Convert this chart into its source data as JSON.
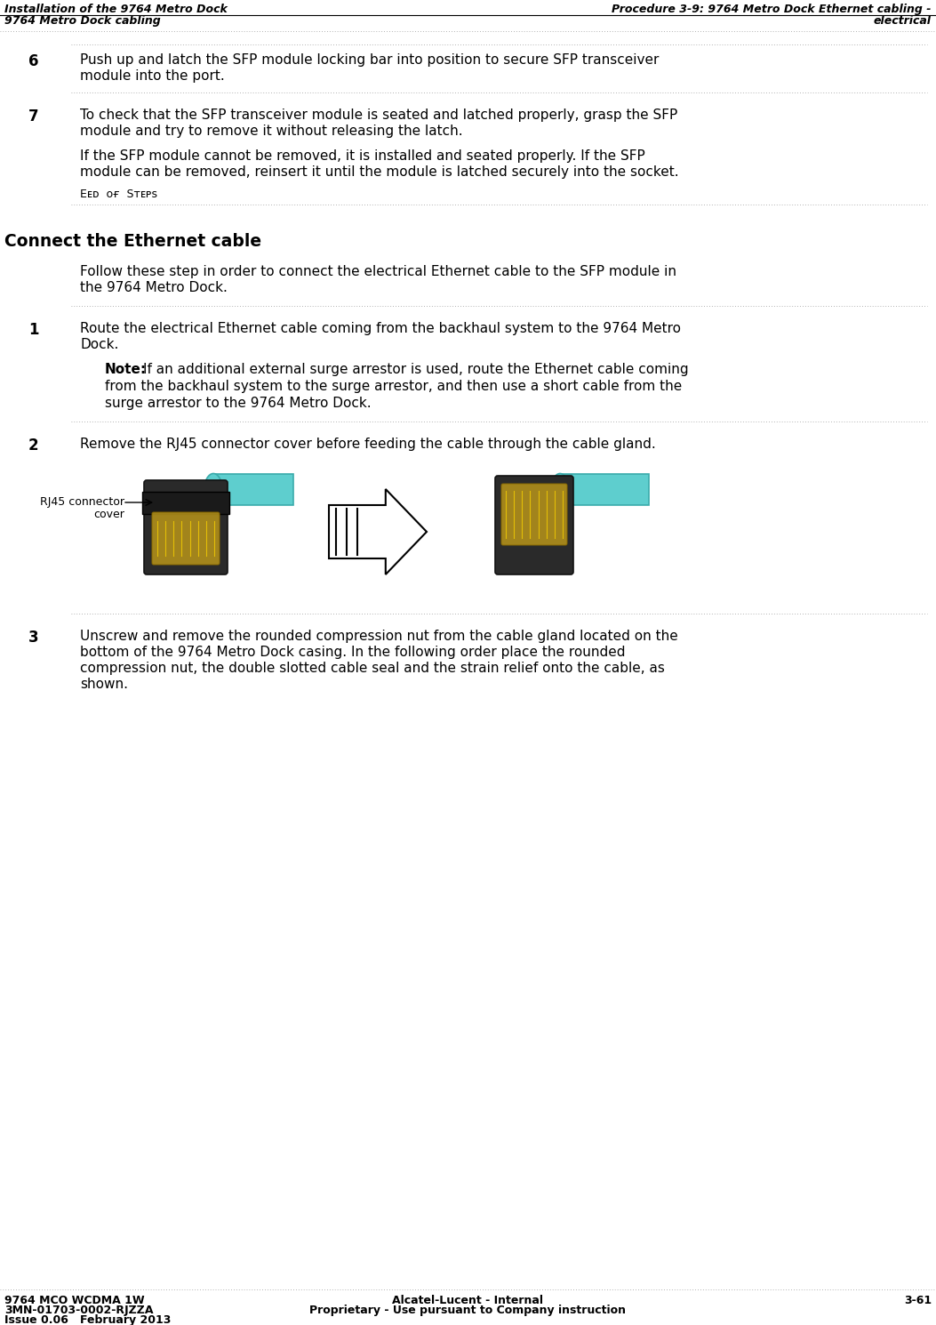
{
  "header_left_line1": "Installation of the 9764 Metro Dock",
  "header_left_line2": "9764 Metro Dock cabling",
  "header_right_line1": "Procedure 3-9: 9764 Metro Dock Ethernet cabling -",
  "header_right_line2": "electrical",
  "footer_left_line1": "9764 MCO WCDMA 1W",
  "footer_left_line2": "3MN-01703-0002-RJZZA",
  "footer_left_line3": "Issue 0.06   February 2013",
  "footer_center_line1": "Alcatel-Lucent - Internal",
  "footer_center_line2": "Proprietary - Use pursuant to Company instruction",
  "footer_right": "3-61",
  "step6_num": "6",
  "step6_line1": "Push up and latch the SFP module locking bar into position to secure SFP transceiver",
  "step6_line2": "module into the port.",
  "step7_num": "7",
  "step7_line1": "To check that the SFP transceiver module is seated and latched properly, grasp the SFP",
  "step7_line2": "module and try to remove it without releasing the latch.",
  "step7_p2_line1": "If the SFP module cannot be removed, it is installed and seated properly. If the SFP",
  "step7_p2_line2": "module can be removed, reinsert it until the module is latched securely into the socket.",
  "end_of_steps": "Eᴇᴅ  ᴏғ  Sᴛᴇᴘѕ",
  "section_title": "Connect the Ethernet cable",
  "intro_line1": "Follow these step in order to connect the electrical Ethernet cable to the SFP module in",
  "intro_line2": "the 9764 Metro Dock.",
  "step1_num": "1",
  "step1_line1": "Route the electrical Ethernet cable coming from the backhaul system to the 9764 Metro",
  "step1_line2": "Dock.",
  "note_bold": "Note:",
  "note_line1": "If an additional external surge arrestor is used, route the Ethernet cable coming",
  "note_line2": "from the backhaul system to the surge arrestor, and then use a short cable from the",
  "note_line3": "surge arrestor to the 9764 Metro Dock.",
  "step2_num": "2",
  "step2_text": "Remove the RJ45 connector cover before feeding the cable through the cable gland.",
  "rj45_label1": "RJ45 connector",
  "rj45_label2": "cover",
  "step3_num": "3",
  "step3_line1": "Unscrew and remove the rounded compression nut from the cable gland located on the",
  "step3_line2": "bottom of the 9764 Metro Dock casing. In the following order place the rounded",
  "step3_line3": "compression nut, the double slotted cable seal and the strain relief onto the cable, as",
  "step3_line4": "shown.",
  "bg": "#ffffff",
  "fg": "#000000",
  "dot_color": "#999999",
  "hdr_fs": 9.0,
  "body_fs": 11.0,
  "num_fs": 12.0,
  "sec_fs": 13.5,
  "ftr_fs": 9.0,
  "eos_fs": 9.0,
  "cable_color": "#5ECECE",
  "cable_dark": "#3AABAB",
  "conn_dark": "#1a1a1a",
  "conn_mid": "#3a3a3a"
}
